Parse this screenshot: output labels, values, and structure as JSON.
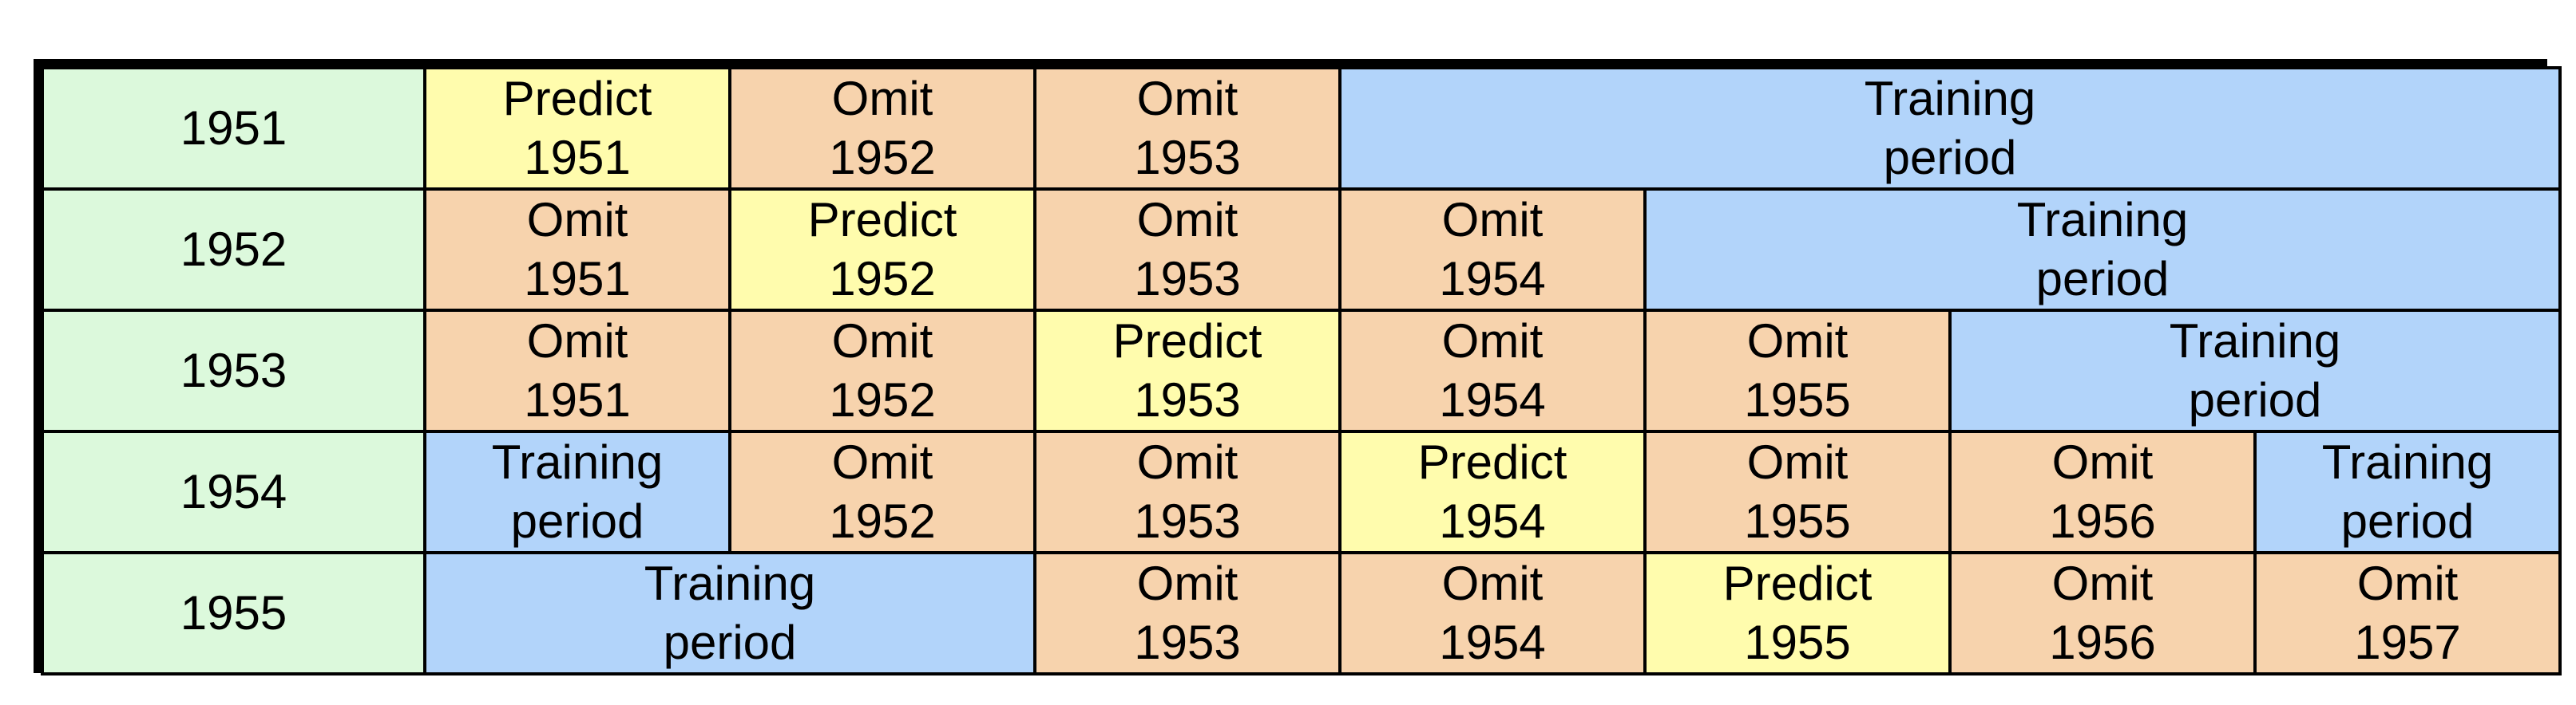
{
  "colors": {
    "year": "#dcf9dc",
    "predict": "#fffcad",
    "omit": "#f7d3ad",
    "training": "#b2d4fa",
    "border": "#000000"
  },
  "rows": [
    {
      "year": "1951",
      "cells": [
        {
          "kind": "predict",
          "span": 1,
          "line1": "Predict",
          "line2": "1951"
        },
        {
          "kind": "omit",
          "span": 1,
          "line1": "Omit",
          "line2": "1952"
        },
        {
          "kind": "omit",
          "span": 1,
          "line1": "Omit",
          "line2": "1953"
        },
        {
          "kind": "training",
          "span": 4,
          "line1": "Training",
          "line2": "period"
        }
      ]
    },
    {
      "year": "1952",
      "cells": [
        {
          "kind": "omit",
          "span": 1,
          "line1": "Omit",
          "line2": "1951"
        },
        {
          "kind": "predict",
          "span": 1,
          "line1": "Predict",
          "line2": "1952"
        },
        {
          "kind": "omit",
          "span": 1,
          "line1": "Omit",
          "line2": "1953"
        },
        {
          "kind": "omit",
          "span": 1,
          "line1": "Omit",
          "line2": "1954"
        },
        {
          "kind": "training",
          "span": 3,
          "line1": "Training",
          "line2": "period"
        }
      ]
    },
    {
      "year": "1953",
      "cells": [
        {
          "kind": "omit",
          "span": 1,
          "line1": "Omit",
          "line2": "1951"
        },
        {
          "kind": "omit",
          "span": 1,
          "line1": "Omit",
          "line2": "1952"
        },
        {
          "kind": "predict",
          "span": 1,
          "line1": "Predict",
          "line2": "1953"
        },
        {
          "kind": "omit",
          "span": 1,
          "line1": "Omit",
          "line2": "1954"
        },
        {
          "kind": "omit",
          "span": 1,
          "line1": "Omit",
          "line2": "1955"
        },
        {
          "kind": "training",
          "span": 2,
          "line1": "Training",
          "line2": "period"
        }
      ]
    },
    {
      "year": "1954",
      "cells": [
        {
          "kind": "training",
          "span": 1,
          "line1": "Training",
          "line2": "period"
        },
        {
          "kind": "omit",
          "span": 1,
          "line1": "Omit",
          "line2": "1952"
        },
        {
          "kind": "omit",
          "span": 1,
          "line1": "Omit",
          "line2": "1953"
        },
        {
          "kind": "predict",
          "span": 1,
          "line1": "Predict",
          "line2": "1954"
        },
        {
          "kind": "omit",
          "span": 1,
          "line1": "Omit",
          "line2": "1955"
        },
        {
          "kind": "omit",
          "span": 1,
          "line1": "Omit",
          "line2": "1956"
        },
        {
          "kind": "training",
          "span": 1,
          "line1": "Training",
          "line2": "period"
        }
      ]
    },
    {
      "year": "1955",
      "cells": [
        {
          "kind": "training",
          "span": 2,
          "line1": "Training",
          "line2": "period"
        },
        {
          "kind": "omit",
          "span": 1,
          "line1": "Omit",
          "line2": "1953"
        },
        {
          "kind": "omit",
          "span": 1,
          "line1": "Omit",
          "line2": "1954"
        },
        {
          "kind": "predict",
          "span": 1,
          "line1": "Predict",
          "line2": "1955"
        },
        {
          "kind": "omit",
          "span": 1,
          "line1": "Omit",
          "line2": "1956"
        },
        {
          "kind": "omit",
          "span": 1,
          "line1": "Omit",
          "line2": "1957"
        }
      ]
    }
  ]
}
